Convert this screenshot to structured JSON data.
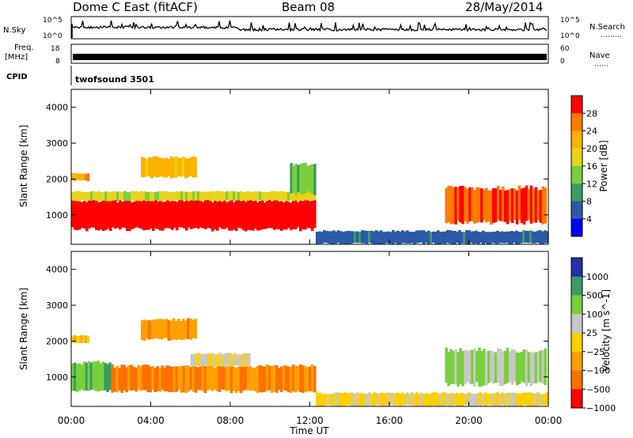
{
  "header": {
    "station": "Dome C East (fitACF)",
    "beam": "Beam 08",
    "date": "28/May/2014"
  },
  "top_panels": {
    "nsky_label": "N.Sky",
    "nsky_ticks": [
      "10^5",
      "10^0"
    ],
    "nsearch_label": "N.Search",
    "nsearch_ticks": [
      "10^5",
      "10^0"
    ],
    "freq_label": "Freq.",
    "freq_unit": "[MHz]",
    "freq_ticks": [
      "18",
      "8"
    ],
    "nave_label": "Nave",
    "nave_ticks": [
      "60",
      "0"
    ],
    "cpid_label": "CPID",
    "cpid_value": "twofsound 3501"
  },
  "chart_data": [
    {
      "type": "heatmap",
      "title": "",
      "xlabel": "Time UT",
      "ylabel": "Slant Range [km]",
      "xlim": [
        0,
        24
      ],
      "ylim": [
        180,
        4500
      ],
      "x_ticks": [
        "00:00",
        "04:00",
        "08:00",
        "12:00",
        "16:00",
        "20:00",
        "00:00"
      ],
      "y_ticks": [
        "1000",
        "2000",
        "3000",
        "4000"
      ],
      "colorbar": {
        "label": "Power [dB]",
        "ticks": [
          "28",
          "24",
          "20",
          "16",
          "12",
          "8",
          "4"
        ],
        "colors": [
          "#ff0000",
          "#ff7a00",
          "#ffb300",
          "#e8d21a",
          "#7ad03c",
          "#3c9b63",
          "#2c5aa8",
          "#0000ff"
        ],
        "range": [
          0,
          30
        ]
      },
      "regions": [
        {
          "t0": 0.0,
          "t1": 12.3,
          "r0": 600,
          "r1": 1400,
          "level": 28
        },
        {
          "t0": 0.0,
          "t1": 12.3,
          "r0": 1400,
          "r1": 1650,
          "level": 16
        },
        {
          "t0": 0.0,
          "t1": 0.9,
          "r0": 1950,
          "r1": 2150,
          "level": 22
        },
        {
          "t0": 3.5,
          "t1": 6.3,
          "r0": 2050,
          "r1": 2600,
          "level": 20
        },
        {
          "t0": 11.0,
          "t1": 12.3,
          "r0": 1600,
          "r1": 2400,
          "level": 12
        },
        {
          "t0": 12.3,
          "t1": 24.0,
          "r0": 200,
          "r1": 550,
          "level": 6
        },
        {
          "t0": 18.8,
          "t1": 23.9,
          "r0": 800,
          "r1": 1750,
          "level": 26
        }
      ]
    },
    {
      "type": "heatmap",
      "title": "",
      "xlabel": "Time UT",
      "ylabel": "Slant Range [km]",
      "xlim": [
        0,
        24
      ],
      "ylim": [
        180,
        4500
      ],
      "x_ticks": [
        "00:00",
        "04:00",
        "08:00",
        "12:00",
        "16:00",
        "20:00",
        "00:00"
      ],
      "y_ticks": [
        "1000",
        "2000",
        "3000",
        "4000"
      ],
      "colorbar": {
        "label": "Velocity [m s^-1]",
        "ticks": [
          "1000",
          "500",
          "100",
          "25",
          "−25",
          "−100",
          "−500",
          "−1000"
        ],
        "colors": [
          "#2233aa",
          "#3c9b63",
          "#7ad03c",
          "#c8c8c8",
          "#ffd000",
          "#ffa000",
          "#ff7000",
          "#ff0000"
        ],
        "range": [
          -1000,
          1000
        ]
      },
      "regions": [
        {
          "t0": 0.0,
          "t1": 2.0,
          "r0": 600,
          "r1": 1400,
          "level": 500
        },
        {
          "t0": 2.0,
          "t1": 12.3,
          "r0": 600,
          "r1": 1300,
          "level": -500
        },
        {
          "t0": 6.0,
          "t1": 9.0,
          "r0": 1300,
          "r1": 1650,
          "level": 0
        },
        {
          "t0": 0.0,
          "t1": 0.9,
          "r0": 1950,
          "r1": 2150,
          "level": -200
        },
        {
          "t0": 3.5,
          "t1": 6.3,
          "r0": 2050,
          "r1": 2600,
          "level": -400
        },
        {
          "t0": 12.3,
          "t1": 24.0,
          "r0": 200,
          "r1": 550,
          "level": -50
        },
        {
          "t0": 18.8,
          "t1": 23.9,
          "r0": 800,
          "r1": 1750,
          "level": 300
        }
      ]
    }
  ]
}
